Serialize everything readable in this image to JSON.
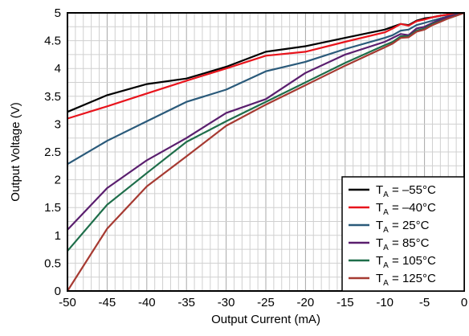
{
  "chart_data": {
    "type": "line",
    "xlabel": "Output Current (mA)",
    "ylabel": "Output Voltage (V)",
    "xlim": [
      -50,
      0
    ],
    "ylim": [
      0,
      5
    ],
    "x_ticks": [
      "-50",
      "-45",
      "-40",
      "-35",
      "-30",
      "-25",
      "-20",
      "-15",
      "-10",
      "-5",
      "0"
    ],
    "y_ticks": [
      "0",
      "0.5",
      "1",
      "1.5",
      "2",
      "2.5",
      "3",
      "3.5",
      "4",
      "4.5",
      "5"
    ],
    "minor_grid_step_x": 1,
    "minor_grid_step_y": 0.25,
    "grid": true,
    "legend_position": "bottom-right",
    "series": [
      {
        "name": "TA = −55°C",
        "legend_main": "T",
        "legend_sub": "A",
        "legend_rest": " = –55°C",
        "color": "#000000",
        "x": [
          -50,
          -45,
          -40,
          -35,
          -30,
          -25,
          -20,
          -15,
          -10,
          -9,
          -8,
          -7,
          -6,
          -5,
          -4,
          -3,
          -2,
          -1,
          0
        ],
        "y": [
          3.22,
          3.52,
          3.72,
          3.82,
          4.03,
          4.3,
          4.4,
          4.55,
          4.7,
          4.75,
          4.8,
          4.78,
          4.86,
          4.9,
          4.92,
          4.95,
          4.97,
          4.98,
          5.0
        ]
      },
      {
        "name": "TA = −40°C",
        "legend_main": "T",
        "legend_sub": "A",
        "legend_rest": " = –40°C",
        "color": "#e8141c",
        "x": [
          -50,
          -45,
          -40,
          -35,
          -30,
          -25,
          -20,
          -15,
          -10,
          -9,
          -8,
          -7,
          -6,
          -5,
          -4,
          -3,
          -2,
          -1,
          0
        ],
        "y": [
          3.1,
          3.32,
          3.55,
          3.78,
          4.0,
          4.23,
          4.3,
          4.48,
          4.65,
          4.72,
          4.8,
          4.77,
          4.85,
          4.88,
          4.92,
          4.95,
          4.97,
          4.98,
          5.0
        ]
      },
      {
        "name": "TA = 25°C",
        "legend_main": "T",
        "legend_sub": "A",
        "legend_rest": " = 25°C",
        "color": "#2a5a7a",
        "x": [
          -50,
          -45,
          -40,
          -35,
          -30,
          -25,
          -20,
          -15,
          -10,
          -9,
          -8,
          -7,
          -6,
          -5,
          -4,
          -3,
          -2,
          -1,
          0
        ],
        "y": [
          2.28,
          2.7,
          3.05,
          3.4,
          3.62,
          3.95,
          4.12,
          4.35,
          4.55,
          4.6,
          4.68,
          4.7,
          4.78,
          4.82,
          4.86,
          4.9,
          4.94,
          4.97,
          5.0
        ]
      },
      {
        "name": "TA = 85°C",
        "legend_main": "T",
        "legend_sub": "A",
        "legend_rest": " = 85°C",
        "color": "#5a1e6e",
        "x": [
          -50,
          -45,
          -40,
          -35,
          -30,
          -25,
          -20,
          -15,
          -10,
          -9,
          -8,
          -7,
          -6,
          -5,
          -4,
          -3,
          -2,
          -1,
          0
        ],
        "y": [
          1.1,
          1.85,
          2.35,
          2.75,
          3.2,
          3.45,
          3.92,
          4.25,
          4.48,
          4.55,
          4.62,
          4.6,
          4.72,
          4.75,
          4.82,
          4.88,
          4.93,
          4.96,
          5.0
        ]
      },
      {
        "name": "TA = 105°C",
        "legend_main": "T",
        "legend_sub": "A",
        "legend_rest": " = 105°C",
        "color": "#1e6e4a",
        "x": [
          -50,
          -45,
          -40,
          -35,
          -30,
          -25,
          -20,
          -15,
          -10,
          -9,
          -8,
          -7,
          -6,
          -5,
          -4,
          -3,
          -2,
          -1,
          0
        ],
        "y": [
          0.72,
          1.55,
          2.12,
          2.68,
          3.05,
          3.4,
          3.75,
          4.1,
          4.42,
          4.48,
          4.58,
          4.58,
          4.68,
          4.72,
          4.8,
          4.85,
          4.9,
          4.95,
          5.0
        ]
      },
      {
        "name": "TA = 125°C",
        "legend_main": "T",
        "legend_sub": "A",
        "legend_rest": " = 125°C",
        "color": "#a63a32",
        "x": [
          -50,
          -45,
          -40,
          -35,
          -30,
          -25,
          -20,
          -15,
          -10,
          -9,
          -8,
          -7,
          -6,
          -5,
          -4,
          -3,
          -2,
          -1,
          0
        ],
        "y": [
          0.0,
          1.12,
          1.88,
          2.42,
          2.97,
          3.35,
          3.7,
          4.05,
          4.38,
          4.45,
          4.55,
          4.56,
          4.66,
          4.7,
          4.78,
          4.84,
          4.9,
          4.95,
          5.0
        ]
      }
    ]
  }
}
